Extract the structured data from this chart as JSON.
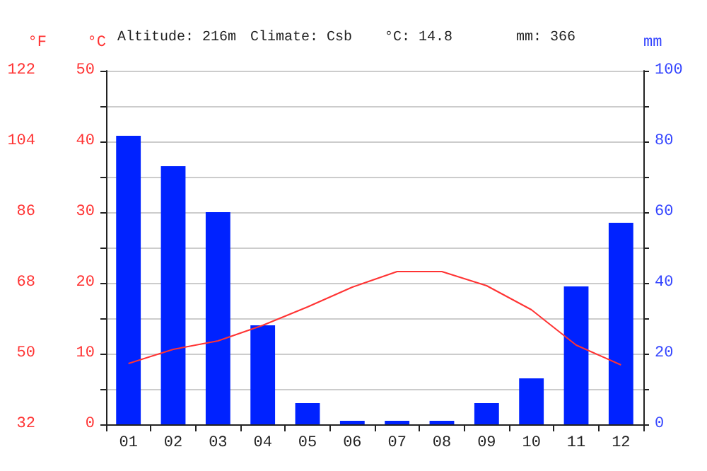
{
  "chart_data": {
    "type": "bar",
    "categories": [
      "01",
      "02",
      "03",
      "04",
      "05",
      "06",
      "07",
      "08",
      "09",
      "10",
      "11",
      "12"
    ],
    "series": [
      {
        "axis": "y2",
        "color": "#0022ff",
        "values": [
          81.6,
          73,
          60,
          28,
          6,
          1,
          1,
          1,
          6,
          13,
          39,
          57
        ]
      },
      {
        "type": "line",
        "axis": "y",
        "color": "#ff3333",
        "values": [
          8.6,
          10.6,
          11.8,
          14,
          16.6,
          19.4,
          21.6,
          21.6,
          19.6,
          16.2,
          11.2,
          8.4
        ]
      }
    ],
    "ylabel": "°C",
    "y2label": "mm",
    "y3label": "°F",
    "ylim": [
      0,
      50
    ],
    "yticks": [
      0,
      {
        "value": 5,
        "label": null
      },
      10,
      {
        "value": 15,
        "label": null
      },
      20,
      {
        "value": 25,
        "label": null
      },
      30,
      {
        "value": 35,
        "label": null
      },
      40,
      {
        "value": 45,
        "label": null
      },
      50
    ],
    "y2lim": [
      0,
      100
    ],
    "y2ticks": [
      0,
      {
        "value": 10,
        "label": null
      },
      20,
      {
        "value": 30,
        "label": null
      },
      40,
      {
        "value": 50,
        "label": null
      },
      60,
      {
        "value": 70,
        "label": null
      },
      80,
      {
        "value": 90,
        "label": null
      },
      100
    ],
    "y3lim": [
      32,
      122
    ],
    "y3ticks": [
      32,
      50,
      68,
      86,
      104,
      122
    ],
    "annotations": [
      "Altitude: 216m",
      "Climate: Csb",
      "°C: 14.8",
      "mm: 366"
    ],
    "grid": "y",
    "marker": "none"
  }
}
